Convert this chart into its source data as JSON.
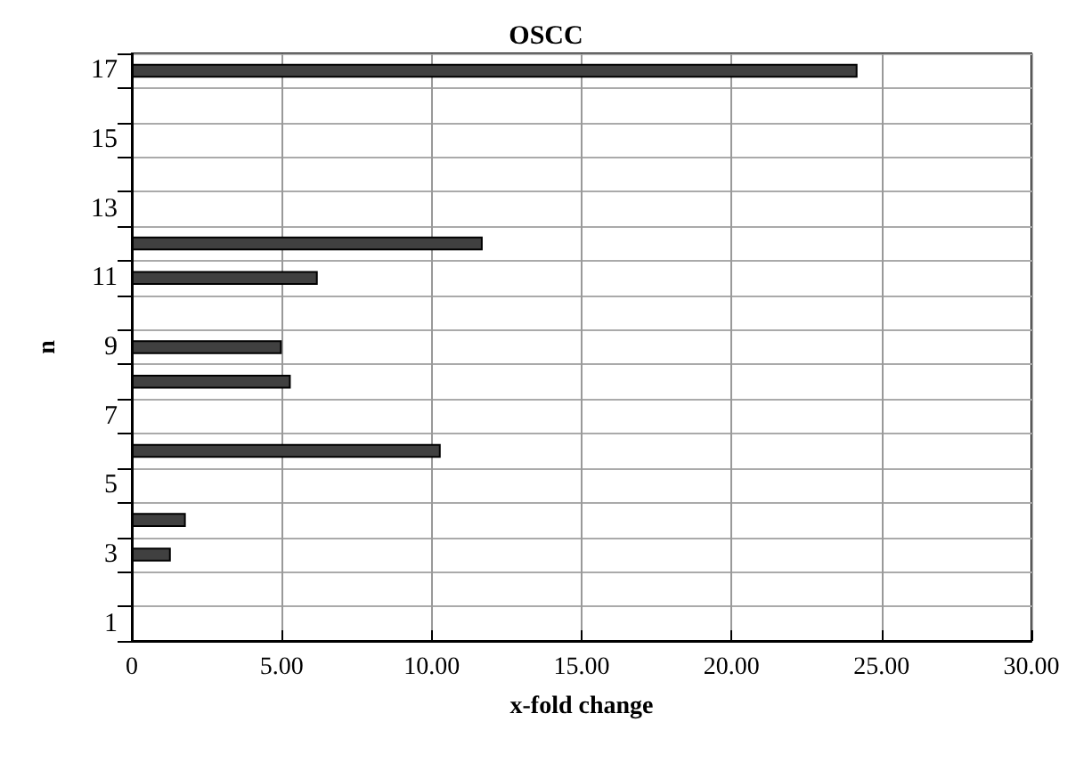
{
  "chart_data": {
    "type": "bar",
    "orientation": "horizontal",
    "title": "OSCC",
    "xlabel": "x-fold change",
    "ylabel": "n",
    "categories": [
      "17",
      null,
      "15",
      null,
      "13",
      null,
      "11",
      null,
      "9",
      null,
      "7",
      null,
      "5",
      null,
      "3",
      null,
      "1"
    ],
    "values": [
      24.2,
      null,
      null,
      null,
      null,
      11.7,
      6.2,
      null,
      5.0,
      5.3,
      null,
      10.3,
      null,
      1.8,
      1.3,
      null,
      null
    ],
    "color": "#404040",
    "xlim": [
      0,
      30
    ],
    "xticks": [
      0,
      {
        "value": 5,
        "label": "5.00"
      },
      {
        "value": 10,
        "label": "10.00"
      },
      {
        "value": 15,
        "label": "15.00"
      },
      {
        "value": 20,
        "label": "20.00"
      },
      {
        "value": 25,
        "label": "25.00"
      },
      {
        "value": 30,
        "label": "30.00"
      }
    ],
    "grid": true
  }
}
